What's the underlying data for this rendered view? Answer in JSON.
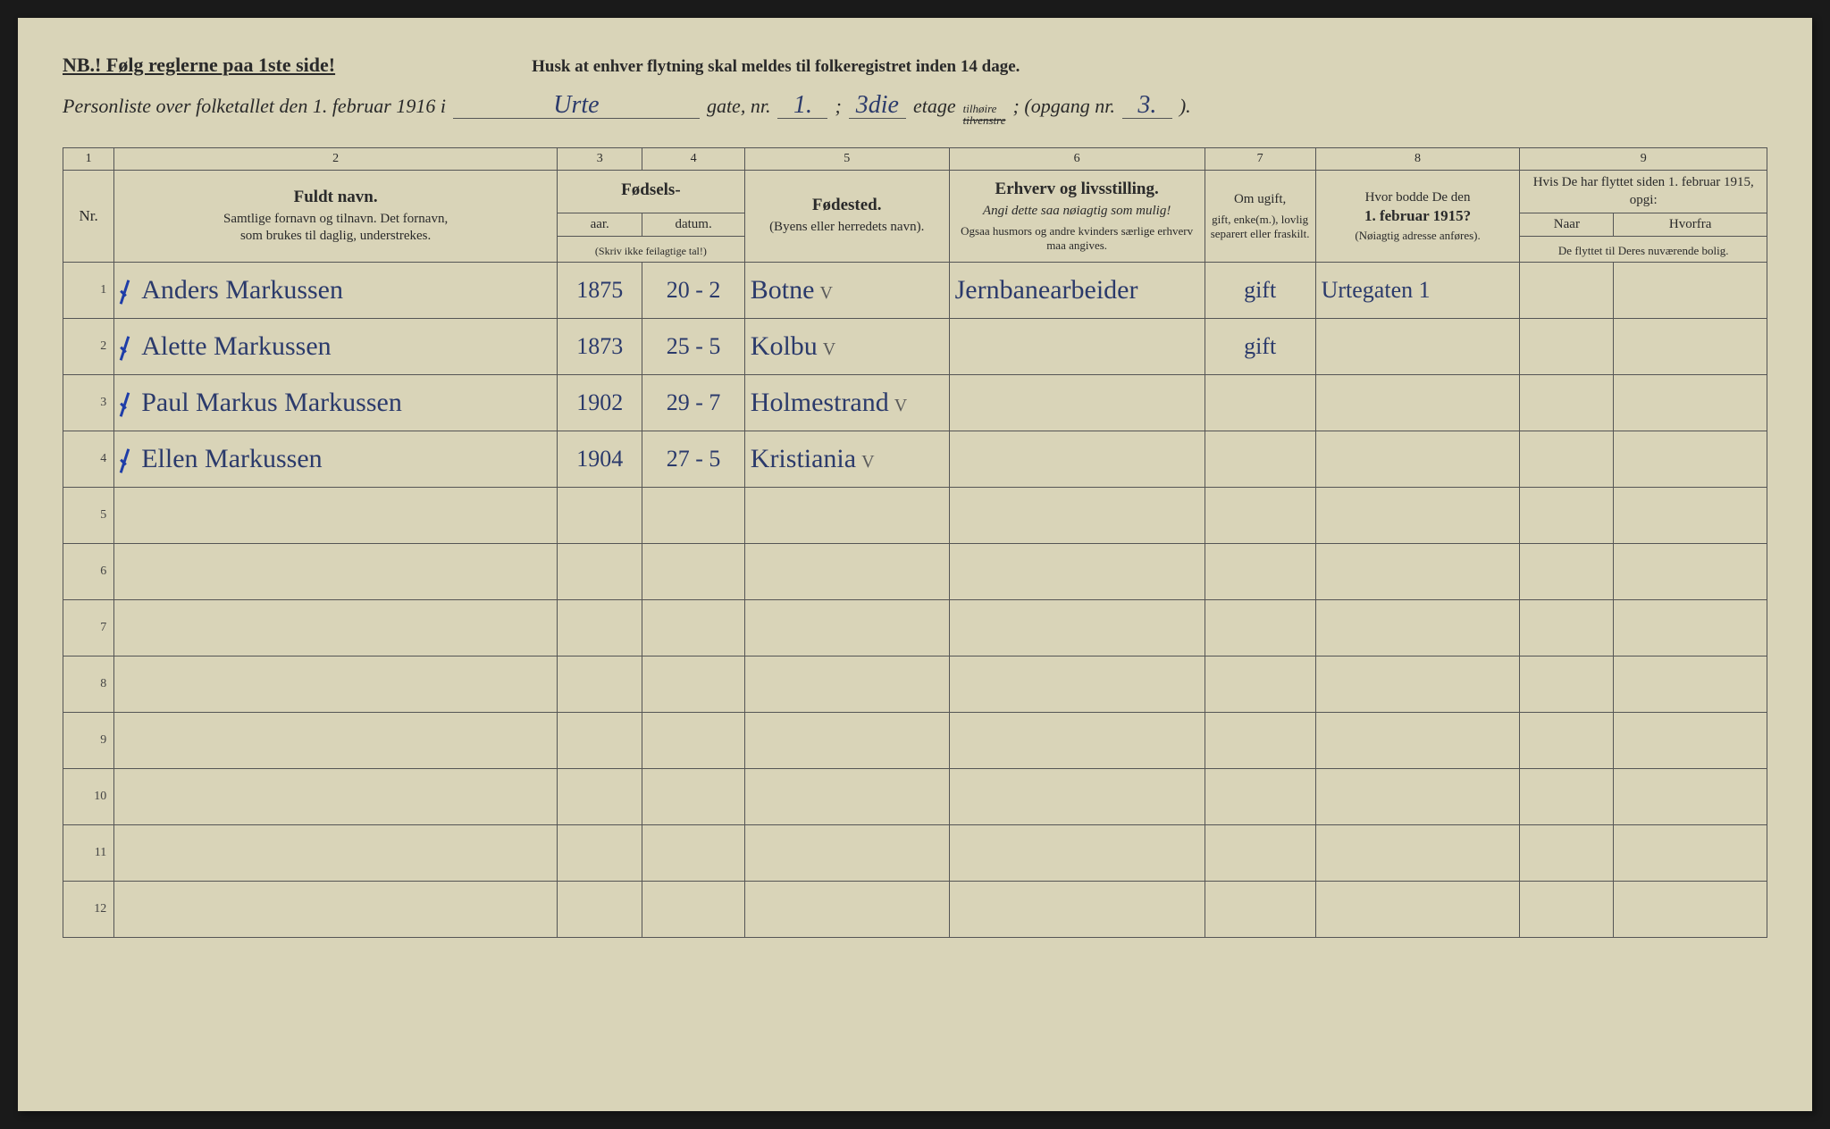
{
  "header": {
    "nb": "NB.! Følg reglerne paa 1ste side!",
    "husk": "Husk at enhver flytning skal meldes til folkeregistret inden 14 dage.",
    "line2_prefix": "Personliste over folketallet den 1. februar 1916 i",
    "street": "Urte",
    "gate_label": "gate, nr.",
    "gate_nr": "1.",
    "semicolon": ";",
    "etage_val": "3die",
    "etage_label": "etage",
    "tilhoire": "tilhøire",
    "tilvenstre": "tilvenstre",
    "opgang_label": "; (opgang nr.",
    "opgang_nr": "3.",
    "opgang_close": ")."
  },
  "colnums": [
    "1",
    "2",
    "3",
    "4",
    "5",
    "6",
    "7",
    "8",
    "9"
  ],
  "columns": {
    "nr": "Nr.",
    "name_title": "Fuldt navn.",
    "name_sub1": "Samtlige fornavn og tilnavn.   Det fornavn,",
    "name_sub2": "som brukes til daglig, understrekes.",
    "fodsels": "Fødsels-",
    "aar": "aar.",
    "datum": "datum.",
    "skriv": "(Skriv ikke feilagtige tal!)",
    "fodested_title": "Fødested.",
    "fodested_sub": "(Byens eller herredets navn).",
    "erhverv_title": "Erhverv og livsstilling.",
    "erhverv_sub1": "Angi dette saa nøiagtig som mulig!",
    "erhverv_sub2": "Ogsaa husmors og andre kvinders særlige erhverv maa angives.",
    "ugift_title": "Om ugift,",
    "ugift_sub": "gift, enke(m.), lovlig separert eller fraskilt.",
    "bodde_title": "Hvor bodde De den",
    "bodde_date": "1. februar 1915?",
    "bodde_sub": "(Nøiagtig adresse anføres).",
    "flyttet_title": "Hvis De har flyttet siden 1. februar 1915, opgi:",
    "naar": "Naar",
    "hvorfra": "Hvorfra",
    "flyttet_sub": "De flyttet til Deres nuværende bolig."
  },
  "rows": [
    {
      "nr": "1",
      "check": true,
      "name": "Anders Markussen",
      "year": "1875",
      "date": "20 - 2",
      "place": "Botne",
      "veri": "V",
      "occ": "Jernbanearbeider",
      "status": "gift",
      "addr": "Urtegaten 1"
    },
    {
      "nr": "2",
      "check": true,
      "name": "Alette Markussen",
      "year": "1873",
      "date": "25 - 5",
      "place": "Kolbu",
      "veri": "V",
      "occ": "",
      "status": "gift",
      "addr": ""
    },
    {
      "nr": "3",
      "check": true,
      "name": "Paul Markus Markussen",
      "year": "1902",
      "date": "29 - 7",
      "place": "Holmestrand",
      "veri": "V",
      "occ": "",
      "status": "",
      "addr": ""
    },
    {
      "nr": "4",
      "check": true,
      "name": "Ellen Markussen",
      "year": "1904",
      "date": "27 - 5",
      "place": "Kristiania",
      "veri": "V",
      "occ": "",
      "status": "",
      "addr": ""
    },
    {
      "nr": "5",
      "check": false,
      "name": "",
      "year": "",
      "date": "",
      "place": "",
      "veri": "",
      "occ": "",
      "status": "",
      "addr": ""
    },
    {
      "nr": "6",
      "check": false,
      "name": "",
      "year": "",
      "date": "",
      "place": "",
      "veri": "",
      "occ": "",
      "status": "",
      "addr": ""
    },
    {
      "nr": "7",
      "check": false,
      "name": "",
      "year": "",
      "date": "",
      "place": "",
      "veri": "",
      "occ": "",
      "status": "",
      "addr": ""
    },
    {
      "nr": "8",
      "check": false,
      "name": "",
      "year": "",
      "date": "",
      "place": "",
      "veri": "",
      "occ": "",
      "status": "",
      "addr": ""
    },
    {
      "nr": "9",
      "check": false,
      "name": "",
      "year": "",
      "date": "",
      "place": "",
      "veri": "",
      "occ": "",
      "status": "",
      "addr": ""
    },
    {
      "nr": "10",
      "check": false,
      "name": "",
      "year": "",
      "date": "",
      "place": "",
      "veri": "",
      "occ": "",
      "status": "",
      "addr": ""
    },
    {
      "nr": "11",
      "check": false,
      "name": "",
      "year": "",
      "date": "",
      "place": "",
      "veri": "",
      "occ": "",
      "status": "",
      "addr": ""
    },
    {
      "nr": "12",
      "check": false,
      "name": "",
      "year": "",
      "date": "",
      "place": "",
      "veri": "",
      "occ": "",
      "status": "",
      "addr": ""
    }
  ],
  "layout": {
    "col_widths_pct": [
      3.0,
      26.0,
      5.0,
      6.0,
      12.0,
      15.0,
      6.5,
      12.0,
      5.5,
      9.0
    ]
  },
  "colors": {
    "paper": "#d9d4b8",
    "ink": "#2a2a2a",
    "hand": "#2b3a6b",
    "rule": "#555555"
  }
}
